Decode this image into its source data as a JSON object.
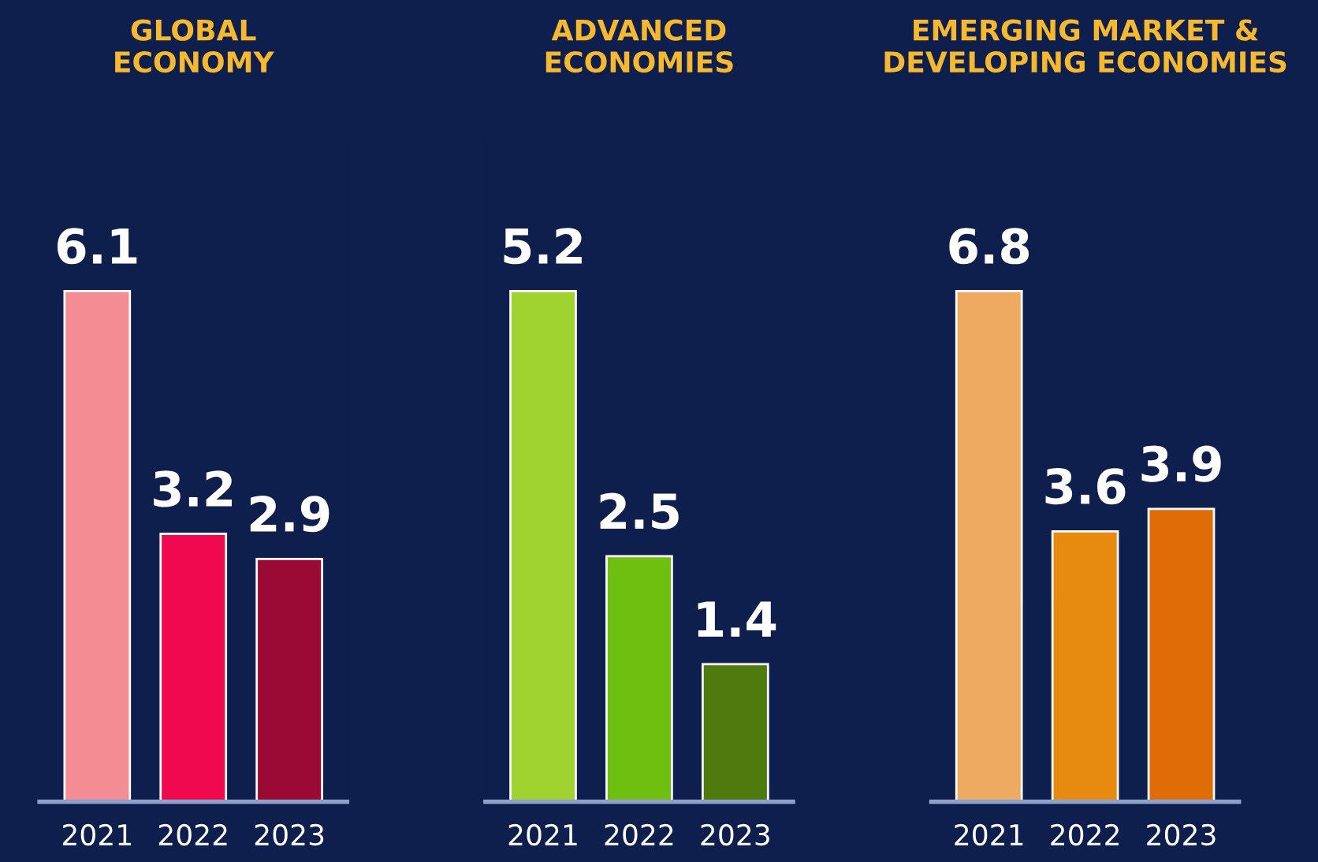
{
  "chart_data": [
    {
      "type": "bar",
      "title": "GLOBAL\nECONOMY",
      "categories": [
        "2021",
        "2022",
        "2023"
      ],
      "values": [
        6.1,
        3.2,
        2.9
      ],
      "colors": [
        "#f48c94",
        "#f0094f",
        "#9a0a34"
      ],
      "data_labels": true,
      "tick_labels": "x"
    },
    {
      "type": "bar",
      "title": "ADVANCED\nECONOMIES",
      "categories": [
        "2021",
        "2022",
        "2023"
      ],
      "values": [
        5.2,
        2.5,
        1.4
      ],
      "colors": [
        "#a0d230",
        "#6fbf10",
        "#4e7a0e"
      ],
      "data_labels": true,
      "tick_labels": "x"
    },
    {
      "type": "bar",
      "title": "EMERGING MARKET &\nDEVELOPING ECONOMIES",
      "categories": [
        "2021",
        "2022",
        "2023"
      ],
      "values": [
        6.8,
        3.6,
        3.9
      ],
      "colors": [
        "#eeaa60",
        "#e88a10",
        "#e06c08"
      ],
      "data_labels": true,
      "tick_labels": "x"
    }
  ]
}
